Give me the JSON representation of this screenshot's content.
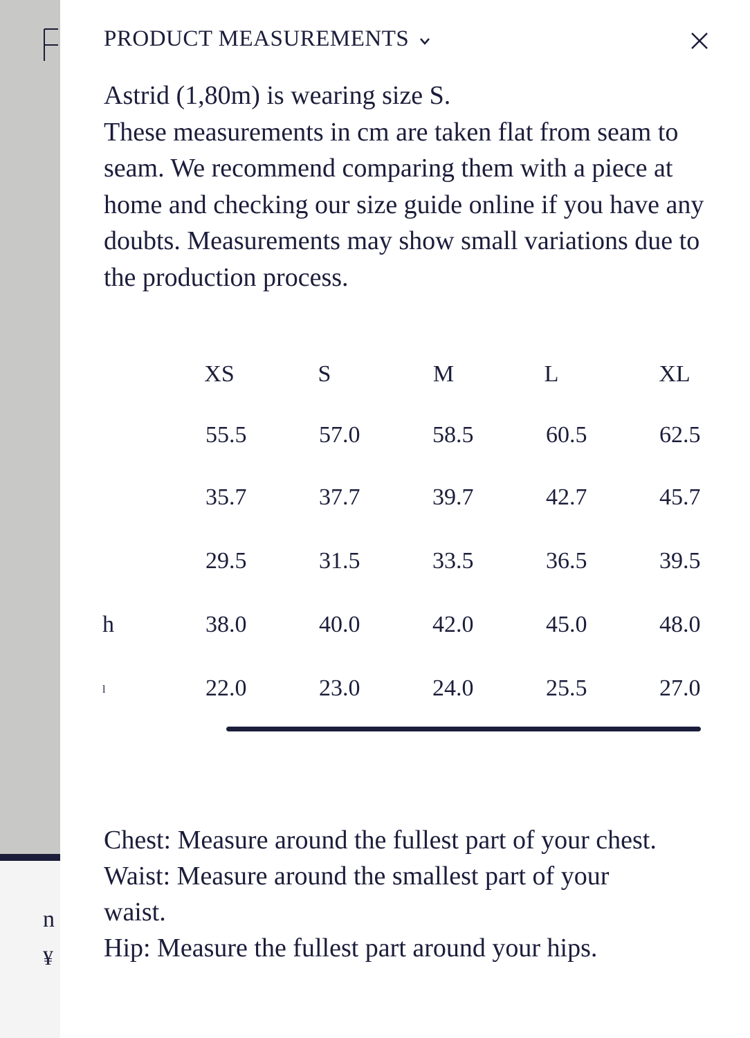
{
  "header": {
    "title": "PRODUCT MEASUREMENTS"
  },
  "intro": {
    "model": "Astrid (1,80m) is wearing size S.",
    "text": "These measurements in cm are taken flat from seam to seam. We recommend comparing them with a piece at home and checking our size guide online if you have any doubts. Measurements may show small variations due to the production process."
  },
  "table": {
    "sizes": [
      "XS",
      "S",
      "M",
      "L",
      "XL"
    ],
    "rows": [
      {
        "values": [
          "55.5",
          "57.0",
          "58.5",
          "60.5",
          "62.5"
        ]
      },
      {
        "values": [
          "35.7",
          "37.7",
          "39.7",
          "42.7",
          "45.7"
        ]
      },
      {
        "values": [
          "29.5",
          "31.5",
          "33.5",
          "36.5",
          "39.5"
        ]
      },
      {
        "label": "h",
        "values": [
          "38.0",
          "40.0",
          "42.0",
          "45.0",
          "48.0"
        ]
      },
      {
        "label": "l",
        "values": [
          "22.0",
          "23.0",
          "24.0",
          "25.5",
          "27.0"
        ]
      }
    ]
  },
  "notes": [
    "Chest: Measure around the fullest part of your chest.",
    "Waist: Measure around the smallest part of your waist.",
    "Hip: Measure the fullest part around your hips."
  ],
  "background": {
    "fragments": [
      "n",
      "¥"
    ]
  }
}
